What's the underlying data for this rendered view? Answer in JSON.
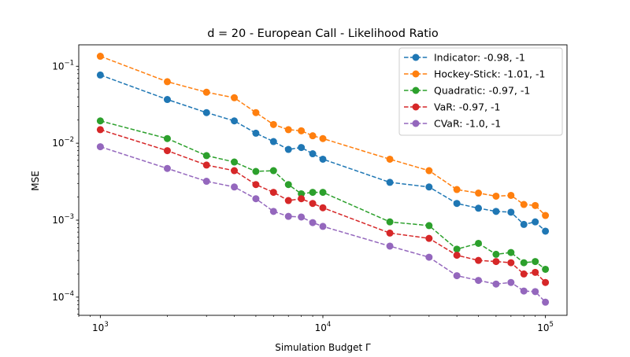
{
  "chart_data": {
    "type": "line",
    "title": "d = 20 - European Call - Likelihood Ratio",
    "xlabel": "Simulation Budget Γ",
    "ylabel": "MSE",
    "xscale": "log",
    "yscale": "log",
    "xlim": [
      800,
      125000
    ],
    "ylim": [
      5.8e-05,
      0.19
    ],
    "x_ticks": [
      {
        "value": 1000,
        "base": "10",
        "exp": "3"
      },
      {
        "value": 10000,
        "base": "10",
        "exp": "4"
      },
      {
        "value": 100000,
        "base": "10",
        "exp": "5"
      }
    ],
    "y_ticks": [
      {
        "value": 0.0001,
        "base": "10",
        "exp": "−4"
      },
      {
        "value": 0.001,
        "base": "10",
        "exp": "−3"
      },
      {
        "value": 0.01,
        "base": "10",
        "exp": "−2"
      },
      {
        "value": 0.1,
        "base": "10",
        "exp": "−1"
      }
    ],
    "legend_position": "upper-right",
    "grid": false,
    "x": [
      1000,
      2000,
      3000,
      4000,
      5000,
      6000,
      7000,
      8000,
      9000,
      10000,
      20000,
      30000,
      40000,
      50000,
      60000,
      70000,
      80000,
      90000,
      100000
    ],
    "series": [
      {
        "name": "Indicator: -0.98, -1",
        "color": "#1f77b4",
        "values": [
          0.077,
          0.037,
          0.025,
          0.0195,
          0.0135,
          0.0105,
          0.0083,
          0.0088,
          0.0073,
          0.0062,
          0.0031,
          0.0027,
          0.00165,
          0.00143,
          0.0013,
          0.00127,
          0.00088,
          0.00095,
          0.00072
        ]
      },
      {
        "name": "Hockey-Stick: -1.01, -1",
        "color": "#ff7f0e",
        "values": [
          0.135,
          0.063,
          0.046,
          0.039,
          0.025,
          0.0175,
          0.015,
          0.0145,
          0.0125,
          0.0115,
          0.0062,
          0.0044,
          0.0025,
          0.00225,
          0.00205,
          0.0021,
          0.0016,
          0.00155,
          0.00115
        ]
      },
      {
        "name": "Quadratic: -0.97, -1",
        "color": "#2ca02c",
        "values": [
          0.0195,
          0.0115,
          0.0069,
          0.0057,
          0.0043,
          0.0044,
          0.0029,
          0.0022,
          0.0023,
          0.0023,
          0.00095,
          0.00085,
          0.00042,
          0.0005,
          0.00036,
          0.00038,
          0.00028,
          0.00029,
          0.00023
        ]
      },
      {
        "name": "VaR: -0.97, -1",
        "color": "#d62728",
        "values": [
          0.015,
          0.008,
          0.0052,
          0.0044,
          0.0029,
          0.0023,
          0.0018,
          0.0019,
          0.00165,
          0.00145,
          0.00068,
          0.00058,
          0.00035,
          0.0003,
          0.00029,
          0.00028,
          0.0002,
          0.00021,
          0.000155
        ]
      },
      {
        "name": "CVaR: -1.0, -1",
        "color": "#9467bd",
        "values": [
          0.009,
          0.0047,
          0.0032,
          0.0027,
          0.0019,
          0.0013,
          0.00112,
          0.0011,
          0.00093,
          0.00083,
          0.00046,
          0.00033,
          0.00019,
          0.000165,
          0.000148,
          0.000155,
          0.00012,
          0.000118,
          8.6e-05
        ]
      }
    ]
  }
}
